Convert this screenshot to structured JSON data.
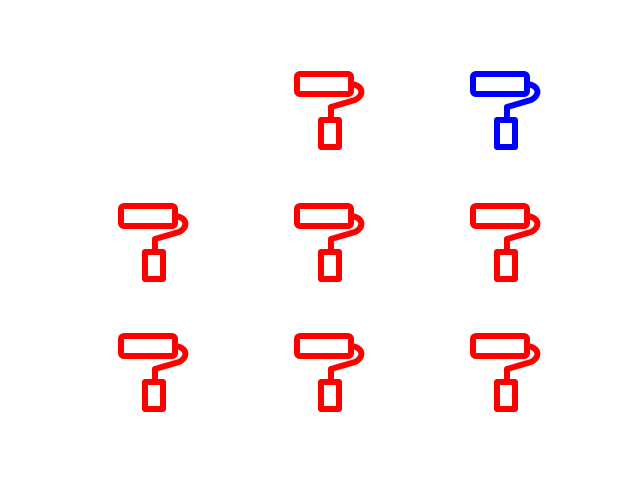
{
  "icons": [
    {
      "name": "paint-roller-icon",
      "color": "#ff0000",
      "present": false
    },
    {
      "name": "paint-roller-icon",
      "color": "#ff0000",
      "present": true
    },
    {
      "name": "paint-roller-icon",
      "color": "#0000ff",
      "present": true
    },
    {
      "name": "paint-roller-icon",
      "color": "#ff0000",
      "present": true
    },
    {
      "name": "paint-roller-icon",
      "color": "#ff0000",
      "present": true
    },
    {
      "name": "paint-roller-icon",
      "color": "#ff0000",
      "present": true
    },
    {
      "name": "paint-roller-icon",
      "color": "#ff0000",
      "present": true
    },
    {
      "name": "paint-roller-icon",
      "color": "#ff0000",
      "present": true
    },
    {
      "name": "paint-roller-icon",
      "color": "#ff0000",
      "present": true
    }
  ]
}
